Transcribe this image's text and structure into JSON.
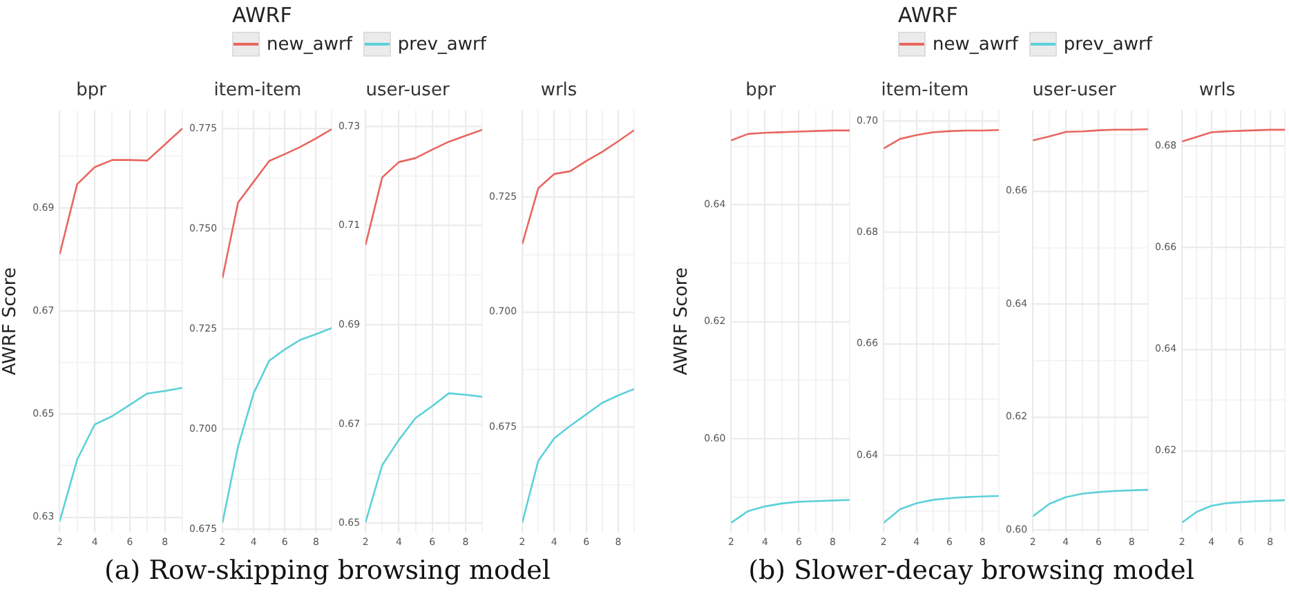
{
  "chart_data": [
    {
      "type": "line",
      "title": "bpr",
      "ylabel": "AWRF Score",
      "legend": "top",
      "legend_title": "AWRF",
      "annotations": [
        "(a) Row-skipping browsing model"
      ],
      "marker": "none",
      "grid": true,
      "x": [
        2,
        3,
        4,
        5,
        6,
        7,
        8,
        9
      ],
      "xlim": [
        2,
        9
      ],
      "xticks": [
        2,
        {
          "value": 3,
          "label": null
        },
        4,
        {
          "value": 5,
          "label": null
        },
        6,
        {
          "value": 7,
          "label": null
        },
        8,
        {
          "value": 9,
          "label": null
        }
      ],
      "ylim": [
        0.627,
        0.709
      ],
      "yticks": [
        0.63,
        {
          "value": 0.64,
          "label": null
        },
        0.65,
        {
          "value": 0.66,
          "label": null
        },
        0.67,
        {
          "value": 0.68,
          "label": null
        },
        0.69,
        {
          "value": 0.7,
          "label": null
        }
      ],
      "series": [
        {
          "name": "new_awrf",
          "color": "#e8665f",
          "values": [
            0.681,
            0.6946,
            0.6979,
            0.6993,
            0.6993,
            0.6992,
            0.7023,
            0.7054
          ]
        },
        {
          "name": "prev_awrf",
          "color": "#5cd1d9",
          "values": [
            0.6292,
            0.6412,
            0.648,
            0.6496,
            0.6518,
            0.654,
            0.6545,
            0.6551
          ]
        }
      ]
    },
    {
      "type": "line",
      "title": "item-item",
      "marker": "none",
      "grid": true,
      "x": [
        2,
        3,
        4,
        5,
        6,
        7,
        8,
        9
      ],
      "xlim": [
        2,
        9
      ],
      "xticks": [
        2,
        {
          "value": 3,
          "label": null
        },
        4,
        {
          "value": 5,
          "label": null
        },
        6,
        {
          "value": 7,
          "label": null
        },
        8,
        {
          "value": 9,
          "label": null
        }
      ],
      "ylim": [
        0.6742,
        0.7796
      ],
      "yticks": [
        {
          "value": 0.675,
          "label": "0.675"
        },
        {
          "value": 0.6875,
          "label": null
        },
        {
          "value": 0.7,
          "label": "0.700"
        },
        {
          "value": 0.7125,
          "label": null
        },
        {
          "value": 0.725,
          "label": "0.725"
        },
        {
          "value": 0.7375,
          "label": null
        },
        {
          "value": 0.75,
          "label": "0.750"
        },
        {
          "value": 0.7625,
          "label": null
        },
        {
          "value": 0.775,
          "label": "0.775"
        }
      ],
      "series": [
        {
          "color": "#e8665f",
          "values": [
            0.7377,
            0.7565,
            0.7617,
            0.7669,
            0.7686,
            0.7704,
            0.7725,
            0.7748
          ]
        },
        {
          "color": "#5cd1d9",
          "values": [
            0.6767,
            0.6957,
            0.709,
            0.7171,
            0.7199,
            0.7223,
            0.7237,
            0.7252
          ]
        }
      ]
    },
    {
      "type": "line",
      "title": "user-user",
      "marker": "none",
      "grid": true,
      "x": [
        2,
        3,
        4,
        5,
        6,
        7,
        8,
        9
      ],
      "xlim": [
        2,
        9
      ],
      "xticks": [
        2,
        {
          "value": 3,
          "label": null
        },
        4,
        {
          "value": 5,
          "label": null
        },
        6,
        {
          "value": 7,
          "label": null
        },
        8,
        {
          "value": 9,
          "label": null
        }
      ],
      "ylim": [
        0.6481,
        0.7333
      ],
      "yticks": [
        0.65,
        {
          "value": 0.66,
          "label": null
        },
        0.67,
        {
          "value": 0.68,
          "label": null
        },
        0.69,
        {
          "value": 0.7,
          "label": null
        },
        0.71,
        {
          "value": 0.72,
          "label": null
        },
        0.73
      ],
      "series": [
        {
          "color": "#e8665f",
          "values": [
            0.7061,
            0.7197,
            0.7228,
            0.7236,
            0.7253,
            0.7269,
            0.7281,
            0.7293
          ]
        },
        {
          "color": "#5cd1d9",
          "values": [
            0.6502,
            0.6617,
            0.6668,
            0.6712,
            0.6736,
            0.6762,
            0.6759,
            0.6755
          ]
        }
      ]
    },
    {
      "type": "line",
      "title": "wrls",
      "marker": "none",
      "grid": true,
      "x": [
        2,
        3,
        4,
        5,
        6,
        7,
        8,
        9
      ],
      "xlim": [
        2,
        9
      ],
      "xticks": [
        2,
        {
          "value": 3,
          "label": null
        },
        4,
        {
          "value": 5,
          "label": null
        },
        6,
        {
          "value": 7,
          "label": null
        },
        8,
        {
          "value": 9,
          "label": null
        }
      ],
      "ylim": [
        0.6521,
        0.7439
      ],
      "yticks": [
        {
          "value": 0.6625,
          "label": null
        },
        {
          "value": 0.675,
          "label": "0.675"
        },
        {
          "value": 0.6875,
          "label": null
        },
        {
          "value": 0.7,
          "label": "0.700"
        },
        {
          "value": 0.7125,
          "label": null
        },
        {
          "value": 0.725,
          "label": "0.725"
        },
        {
          "value": 0.7375,
          "label": null
        }
      ],
      "series": [
        {
          "color": "#e8665f",
          "values": [
            0.7148,
            0.7269,
            0.73,
            0.7306,
            0.7328,
            0.7348,
            0.7371,
            0.7395
          ]
        },
        {
          "color": "#5cd1d9",
          "values": [
            0.6543,
            0.6677,
            0.6726,
            0.6753,
            0.6778,
            0.6803,
            0.6819,
            0.6833
          ]
        }
      ]
    },
    {
      "type": "line",
      "title": "bpr",
      "ylabel": "AWRF Score",
      "legend": "top",
      "legend_title": "AWRF",
      "annotations": [
        "(b) Slower-decay browsing model"
      ],
      "marker": "none",
      "grid": true,
      "x": [
        2,
        3,
        4,
        5,
        6,
        7,
        8,
        9
      ],
      "xlim": [
        2,
        9
      ],
      "xticks": [
        2,
        {
          "value": 3,
          "label": null
        },
        4,
        {
          "value": 5,
          "label": null
        },
        6,
        {
          "value": 7,
          "label": null
        },
        8,
        {
          "value": 9,
          "label": null
        }
      ],
      "ylim": [
        0.5839,
        0.6562
      ],
      "yticks": [
        {
          "value": 0.59,
          "label": null
        },
        {
          "value": 0.6,
          "label": "0.60"
        },
        {
          "value": 0.61,
          "label": null
        },
        0.62,
        {
          "value": 0.63,
          "label": null
        },
        0.64,
        {
          "value": 0.65,
          "label": null
        }
      ],
      "series": [
        {
          "name": "new_awrf",
          "color": "#e8665f",
          "values": [
            0.651,
            0.6521,
            0.6523,
            0.6524,
            0.6525,
            0.6526,
            0.6527,
            0.6527
          ]
        },
        {
          "name": "prev_awrf",
          "color": "#5cd1d9",
          "values": [
            0.5856,
            0.5876,
            0.5884,
            0.5889,
            0.5892,
            0.5893,
            0.5894,
            0.5895
          ]
        }
      ]
    },
    {
      "type": "line",
      "title": "item-item",
      "marker": "none",
      "grid": true,
      "x": [
        2,
        3,
        4,
        5,
        6,
        7,
        8,
        9
      ],
      "xlim": [
        2,
        9
      ],
      "xticks": [
        2,
        {
          "value": 3,
          "label": null
        },
        4,
        {
          "value": 5,
          "label": null
        },
        6,
        {
          "value": 7,
          "label": null
        },
        8,
        {
          "value": 9,
          "label": null
        }
      ],
      "ylim": [
        0.6261,
        0.702
      ],
      "yticks": [
        {
          "value": 0.63,
          "label": null
        },
        0.64,
        {
          "value": 0.65,
          "label": null
        },
        0.66,
        {
          "value": 0.67,
          "label": null
        },
        0.68,
        {
          "value": 0.69,
          "label": null
        },
        {
          "value": 0.7,
          "label": "0.70"
        }
      ],
      "series": [
        {
          "color": "#e8665f",
          "values": [
            0.6951,
            0.6968,
            0.6975,
            0.698,
            0.6982,
            0.6983,
            0.6983,
            0.6984
          ]
        },
        {
          "color": "#5cd1d9",
          "values": [
            0.6279,
            0.6303,
            0.6314,
            0.632,
            0.6323,
            0.6325,
            0.6326,
            0.6327
          ]
        }
      ]
    },
    {
      "type": "line",
      "title": "user-user",
      "marker": "none",
      "grid": true,
      "x": [
        2,
        3,
        4,
        5,
        6,
        7,
        8,
        9
      ],
      "xlim": [
        2,
        9
      ],
      "xticks": [
        2,
        {
          "value": 3,
          "label": null
        },
        4,
        {
          "value": 5,
          "label": null
        },
        6,
        {
          "value": 7,
          "label": null
        },
        8,
        {
          "value": 9,
          "label": null
        }
      ],
      "ylim": [
        0.5995,
        0.6744
      ],
      "yticks": [
        {
          "value": 0.6,
          "label": "0.60"
        },
        {
          "value": 0.61,
          "label": null
        },
        0.62,
        {
          "value": 0.63,
          "label": null
        },
        0.64,
        {
          "value": 0.65,
          "label": null
        },
        0.66,
        {
          "value": 0.67,
          "label": null
        }
      ],
      "series": [
        {
          "color": "#e8665f",
          "values": [
            0.669,
            0.6697,
            0.6705,
            0.6706,
            0.6708,
            0.6709,
            0.6709,
            0.671
          ]
        },
        {
          "color": "#5cd1d9",
          "values": [
            0.6024,
            0.6046,
            0.6058,
            0.6064,
            0.6067,
            0.6069,
            0.607,
            0.6071
          ]
        }
      ]
    },
    {
      "type": "line",
      "title": "wrls",
      "marker": "none",
      "grid": true,
      "x": [
        2,
        3,
        4,
        5,
        6,
        7,
        8,
        9
      ],
      "xlim": [
        2,
        9
      ],
      "xticks": [
        2,
        {
          "value": 3,
          "label": null
        },
        4,
        {
          "value": 5,
          "label": null
        },
        6,
        {
          "value": 7,
          "label": null
        },
        8,
        {
          "value": 9,
          "label": null
        }
      ],
      "ylim": [
        0.6039,
        0.6871
      ],
      "yticks": [
        {
          "value": 0.61,
          "label": null
        },
        0.62,
        {
          "value": 0.63,
          "label": null
        },
        0.64,
        {
          "value": 0.65,
          "label": null
        },
        0.66,
        {
          "value": 0.67,
          "label": null
        },
        0.68
      ],
      "series": [
        {
          "color": "#e8665f",
          "values": [
            0.6809,
            0.6818,
            0.6827,
            0.6829,
            0.683,
            0.6831,
            0.6832,
            0.6832
          ]
        },
        {
          "color": "#5cd1d9",
          "values": [
            0.6059,
            0.608,
            0.6092,
            0.6097,
            0.6099,
            0.6101,
            0.6102,
            0.6103
          ]
        }
      ]
    }
  ]
}
